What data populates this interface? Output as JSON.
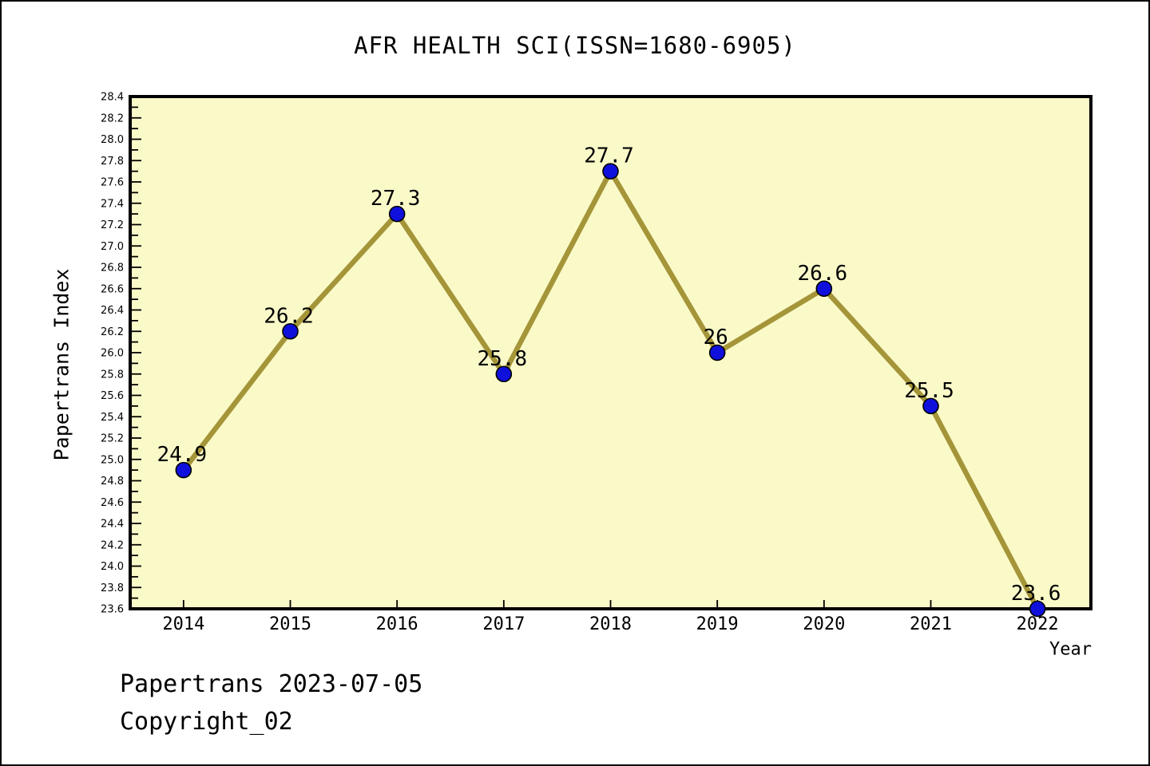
{
  "chart_data": {
    "type": "line",
    "title": "AFR HEALTH SCI(ISSN=1680-6905)",
    "xlabel": "Year",
    "ylabel": "Papertrans Index",
    "categories": [
      2014,
      2015,
      2016,
      2017,
      2018,
      2019,
      2020,
      2021,
      2022
    ],
    "values": [
      24.9,
      26.2,
      27.3,
      25.8,
      27.7,
      26,
      26.6,
      25.5,
      23.6
    ],
    "point_labels": [
      "24.9",
      "26.2",
      "27.3",
      "25.8",
      "27.7",
      "26",
      "26.6",
      "25.5",
      "23.6"
    ],
    "xlim": [
      2013.5,
      2022.5
    ],
    "ylim": [
      23.6,
      28.4
    ],
    "ytick_major_step": 0.2,
    "ytick_minor_step": 0.1,
    "grid": false,
    "legend_position": "none",
    "colors": {
      "line": "#A59539",
      "marker": "#1010DC",
      "marker_edge": "#000000",
      "plot_bg": "#FAFAC9",
      "frame": "#000000",
      "text": "#000000"
    }
  },
  "footer": {
    "line1": "Papertrans 2023-07-05",
    "line2": "Copyright_02"
  }
}
